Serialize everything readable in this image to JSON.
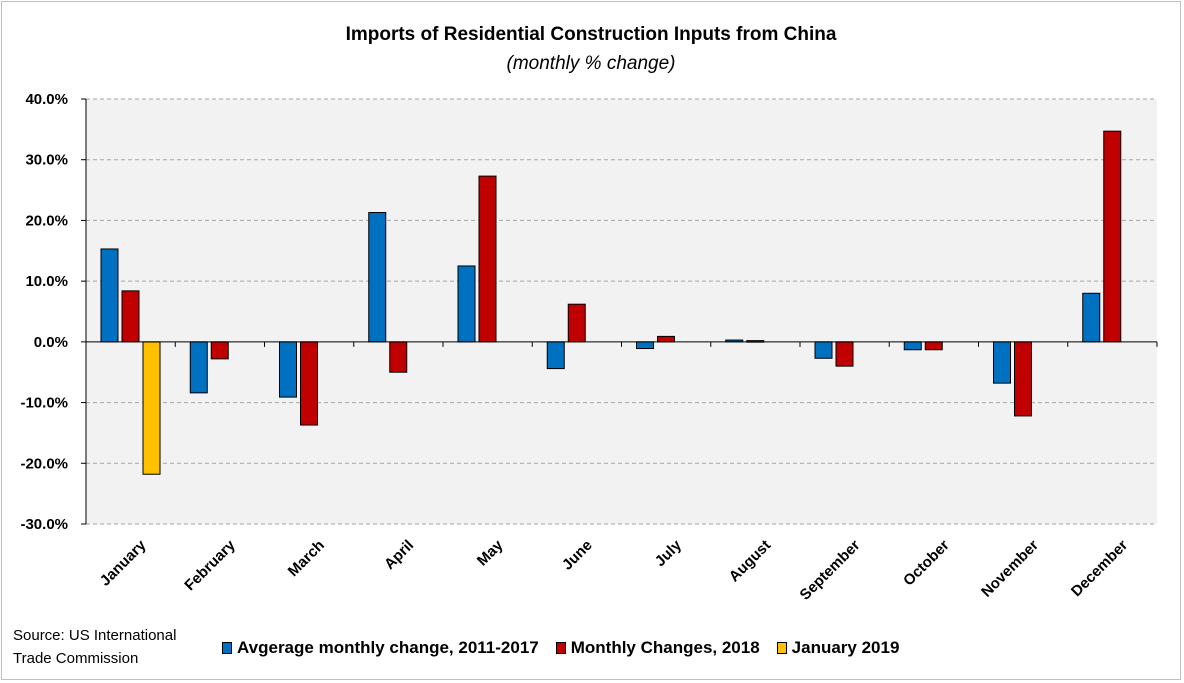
{
  "chart_data": {
    "type": "bar",
    "title": "Imports of Residential Construction Inputs from China",
    "subtitle": "(monthly % change)",
    "xlabel": "",
    "ylabel": "",
    "ylim": [
      -30,
      40
    ],
    "yticks": [
      40,
      30,
      20,
      10,
      0,
      -10,
      -20,
      -30
    ],
    "ytick_labels": [
      "40.0%",
      "30.0%",
      "20.0%",
      "10.0%",
      "0.0%",
      "-10.0%",
      "-20.0%",
      "-30.0%"
    ],
    "grid": true,
    "categories": [
      "January",
      "February",
      "March",
      "April",
      "May",
      "June",
      "July",
      "August",
      "September",
      "October",
      "November",
      "December"
    ],
    "series": [
      {
        "name": "Avgerage monthly change, 2011-2017",
        "color": "#0070c0",
        "values": [
          15.3,
          -8.4,
          -9.1,
          21.3,
          12.5,
          -4.4,
          -1.1,
          0.3,
          -2.7,
          -1.3,
          -6.8,
          8.0
        ]
      },
      {
        "name": "Monthly Changes, 2018",
        "color": "#c00000",
        "values": [
          8.4,
          -2.8,
          -13.7,
          -5.0,
          27.3,
          6.2,
          0.9,
          0.2,
          -4.0,
          -1.3,
          -12.2,
          34.7
        ]
      },
      {
        "name": "January 2019",
        "color": "#ffc000",
        "values": [
          -21.8,
          null,
          null,
          null,
          null,
          null,
          null,
          null,
          null,
          null,
          null,
          null
        ]
      }
    ],
    "legend_position": "bottom"
  },
  "source": {
    "line1": "Source: US International",
    "line2": "Trade Commission"
  }
}
